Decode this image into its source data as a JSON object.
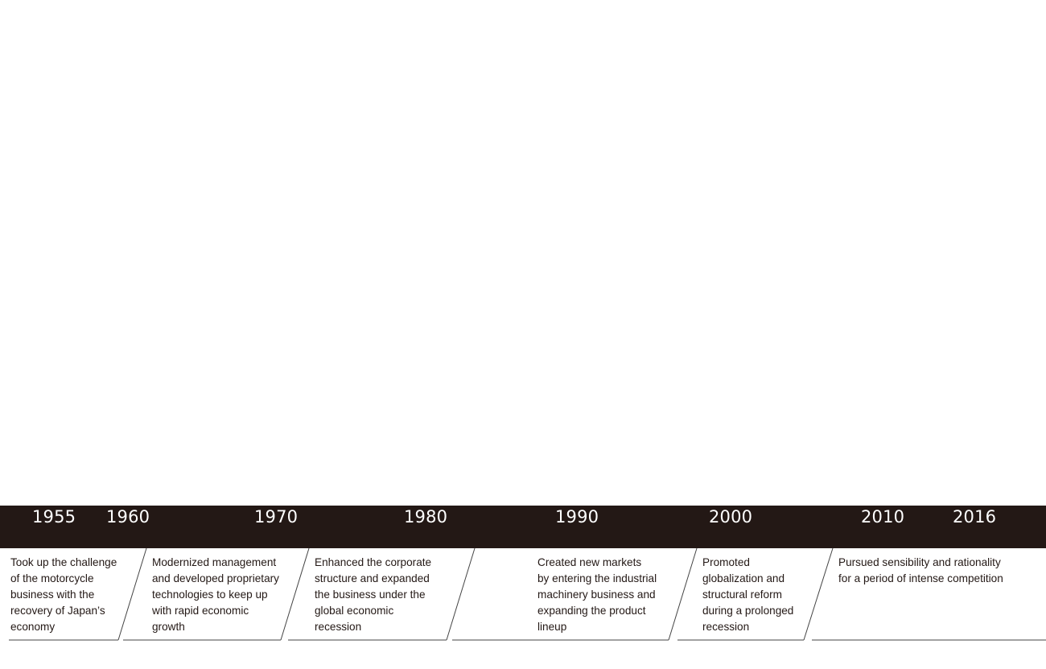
{
  "timeline": {
    "years": [
      "1955",
      "1960",
      "1970",
      "1980",
      "1990",
      "2000",
      "2010",
      "2016"
    ],
    "eras": [
      {
        "lines": [
          "Took up the challenge",
          "of the motorcycle",
          "business with the",
          "recovery of Japan’s",
          "economy"
        ]
      },
      {
        "lines": [
          "Modernized management",
          "and developed proprietary",
          "technologies to keep up",
          "with rapid economic",
          "growth"
        ]
      },
      {
        "lines": [
          "Enhanced the corporate",
          "structure and expanded",
          "the business under the",
          "global economic",
          "recession"
        ]
      },
      {
        "lines": [
          "Created new markets",
          "by entering the industrial",
          "machinery business and",
          "expanding the product",
          "lineup"
        ]
      },
      {
        "lines": [
          "Promoted",
          "globalization and",
          "structural reform",
          "during a prolonged",
          "recession"
        ]
      },
      {
        "lines": [
          "Pursued sensibility and rationality",
          "for a period of intense competition"
        ]
      }
    ]
  },
  "colors": {
    "band": "#231815",
    "year_text": "#ffffff",
    "body_text": "#231815",
    "rule": "#444444"
  }
}
